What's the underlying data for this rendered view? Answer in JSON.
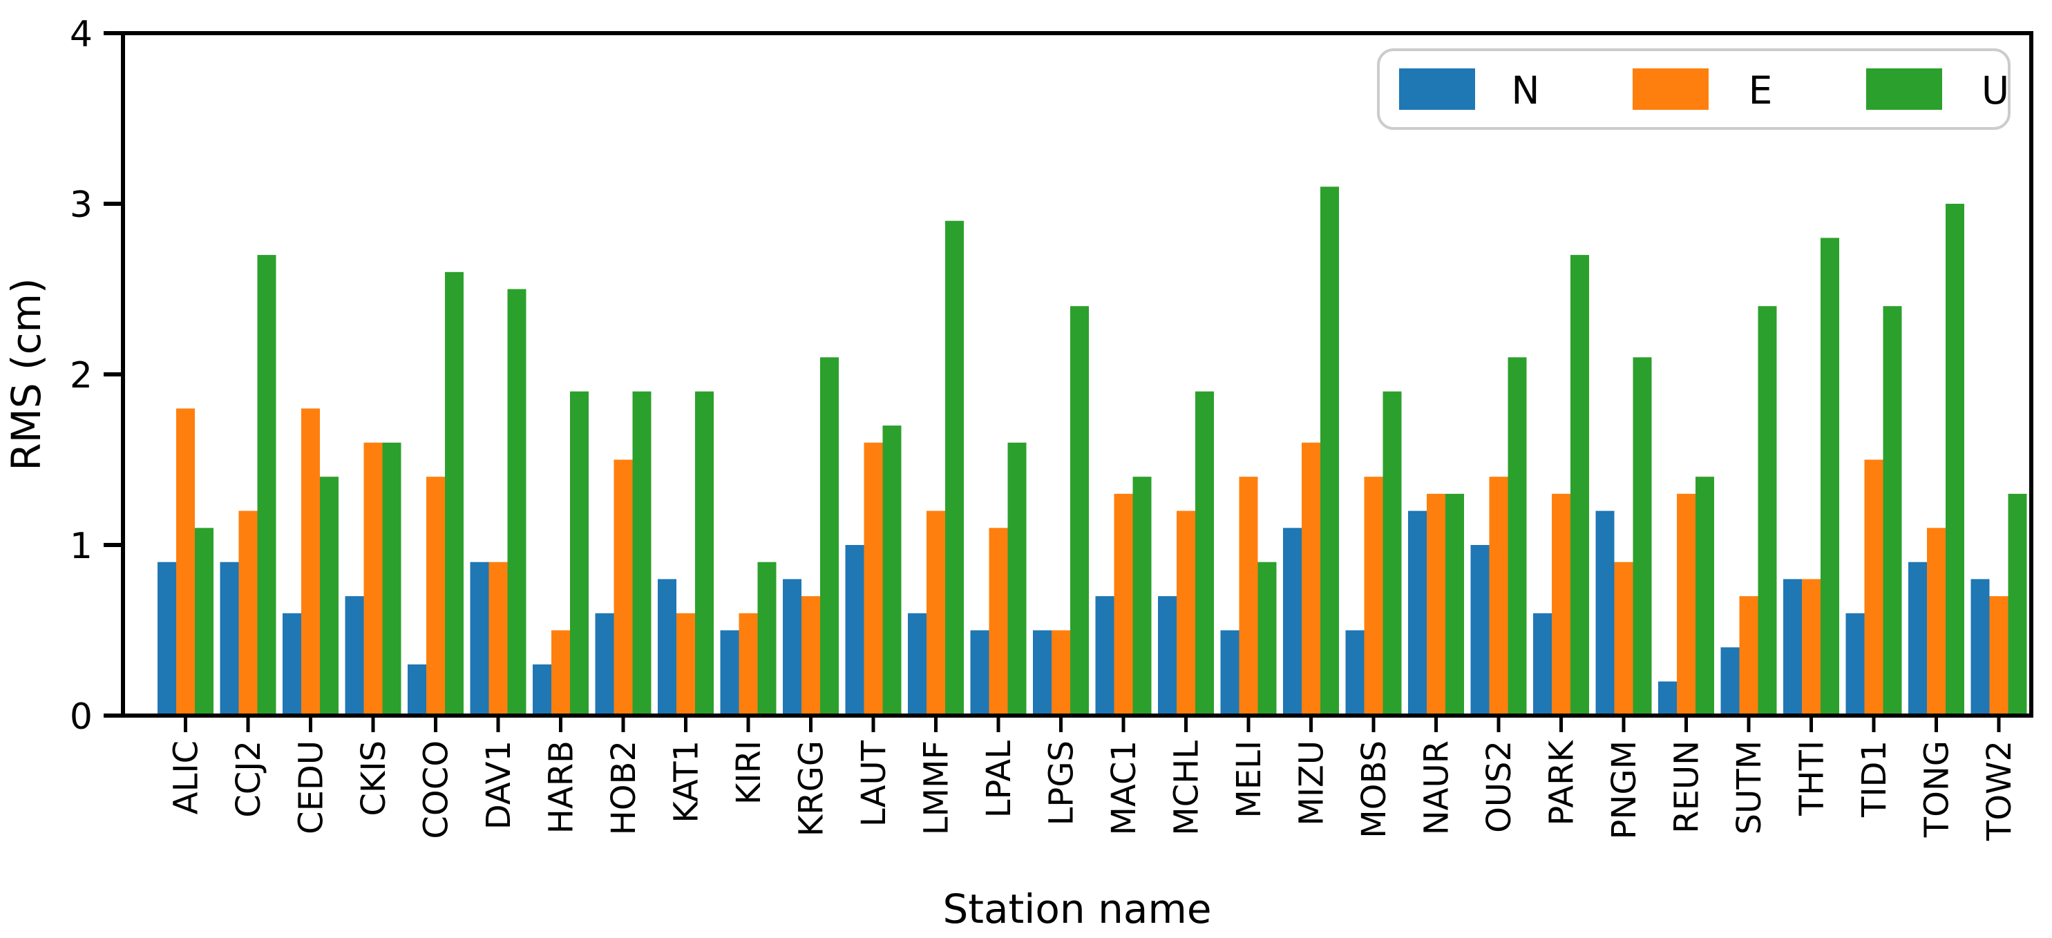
{
  "chart_data": {
    "type": "bar",
    "title": "",
    "xlabel": "Station name",
    "ylabel": "RMS (cm)",
    "ylim": [
      0,
      4
    ],
    "yticks": [
      0,
      1,
      2,
      3,
      4
    ],
    "grid": false,
    "legend_position": "upper right",
    "categories": [
      "ALIC",
      "CCJ2",
      "CEDU",
      "CKIS",
      "COCO",
      "DAV1",
      "HARB",
      "HOB2",
      "KAT1",
      "KIRI",
      "KRGG",
      "LAUT",
      "LMMF",
      "LPAL",
      "LPGS",
      "MAC1",
      "MCHL",
      "MELI",
      "MIZU",
      "MOBS",
      "NAUR",
      "OUS2",
      "PARK",
      "PNGM",
      "REUN",
      "SUTM",
      "THTI",
      "TID1",
      "TONG",
      "TOW2"
    ],
    "series": [
      {
        "name": "N",
        "color": "#1f77b4",
        "values": [
          0.9,
          0.9,
          0.6,
          0.7,
          0.3,
          0.9,
          0.3,
          0.6,
          0.8,
          0.5,
          0.8,
          1.0,
          0.6,
          0.5,
          0.5,
          0.7,
          0.7,
          0.5,
          1.1,
          0.5,
          1.2,
          1.0,
          0.6,
          1.2,
          0.2,
          0.4,
          0.8,
          0.6,
          0.9,
          0.8
        ]
      },
      {
        "name": "E",
        "color": "#ff7f0e",
        "values": [
          1.8,
          1.2,
          1.8,
          1.6,
          1.4,
          0.9,
          0.5,
          1.5,
          0.6,
          0.6,
          0.7,
          1.6,
          1.2,
          1.1,
          0.5,
          1.3,
          1.2,
          1.4,
          1.6,
          1.4,
          1.3,
          1.4,
          1.3,
          0.9,
          1.3,
          0.7,
          0.8,
          1.5,
          1.1,
          0.7
        ]
      },
      {
        "name": "U",
        "color": "#2ca02c",
        "values": [
          1.1,
          2.7,
          1.4,
          1.6,
          2.6,
          2.5,
          1.9,
          1.9,
          1.9,
          0.9,
          2.1,
          1.7,
          2.9,
          1.6,
          2.4,
          1.4,
          1.9,
          0.9,
          3.1,
          1.9,
          1.3,
          2.1,
          2.7,
          2.1,
          1.4,
          2.4,
          2.8,
          2.4,
          3.0,
          1.3
        ]
      }
    ],
    "axis_color": "#000000",
    "background_color": "#ffffff",
    "legend_border_color": "#cccccc"
  }
}
